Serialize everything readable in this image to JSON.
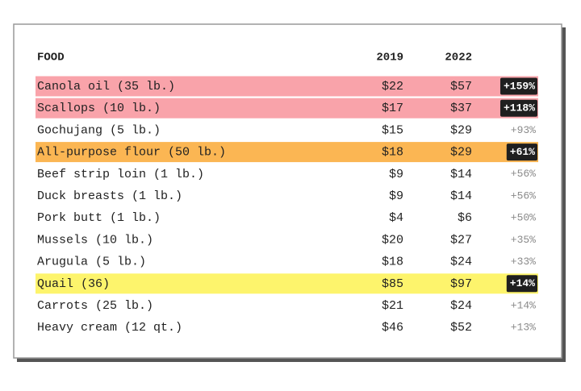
{
  "table": {
    "headers": [
      "FOOD",
      "2019",
      "2022"
    ],
    "rows": [
      {
        "food": "Canola oil (35 lb.)",
        "y2019": "$22",
        "y2022": "$57",
        "change": "+159%",
        "highlight": "#f9a3aa",
        "badge": true
      },
      {
        "food": "Scallops (10 lb.)",
        "y2019": "$17",
        "y2022": "$37",
        "change": "+118%",
        "highlight": "#f9a3aa",
        "badge": true
      },
      {
        "food": "Gochujang (5 lb.)",
        "y2019": "$15",
        "y2022": "$29",
        "change": "+93%",
        "badge": false
      },
      {
        "food": "All-purpose flour (50 lb.)",
        "y2019": "$18",
        "y2022": "$29",
        "change": "+61%",
        "highlight": "#fbb653",
        "badge": true
      },
      {
        "food": "Beef strip loin (1 lb.)",
        "y2019": "$9",
        "y2022": "$14",
        "change": "+56%",
        "badge": false
      },
      {
        "food": "Duck breasts (1 lb.)",
        "y2019": "$9",
        "y2022": "$14",
        "change": "+56%",
        "badge": false
      },
      {
        "food": "Pork butt (1 lb.)",
        "y2019": "$4",
        "y2022": "$6",
        "change": "+50%",
        "badge": false
      },
      {
        "food": "Mussels (10 lb.)",
        "y2019": "$20",
        "y2022": "$27",
        "change": "+35%",
        "badge": false
      },
      {
        "food": "Arugula (5 lb.)",
        "y2019": "$18",
        "y2022": "$24",
        "change": "+33%",
        "badge": false
      },
      {
        "food": "Quail (36)",
        "y2019": "$85",
        "y2022": "$97",
        "change": "+14%",
        "highlight": "#fdf46c",
        "badge": true
      },
      {
        "food": "Carrots (25 lb.)",
        "y2019": "$21",
        "y2022": "$24",
        "change": "+14%",
        "badge": false
      },
      {
        "food": "Heavy cream (12 qt.)",
        "y2019": "$46",
        "y2022": "$52",
        "change": "+13%",
        "badge": false
      }
    ]
  }
}
